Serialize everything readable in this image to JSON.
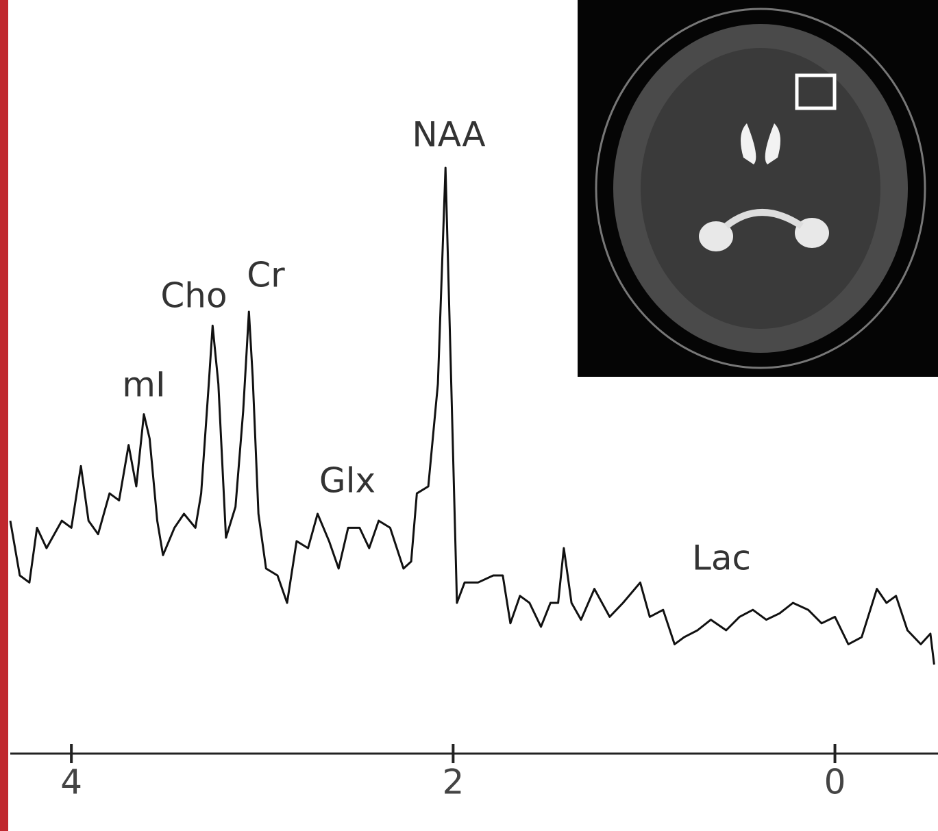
{
  "chart_data": {
    "type": "line",
    "x": [
      4.32,
      4.27,
      4.22,
      4.18,
      4.13,
      4.05,
      4.0,
      3.95,
      3.91,
      3.86,
      3.8,
      3.75,
      3.7,
      3.66,
      3.62,
      3.59,
      3.55,
      3.52,
      3.46,
      3.41,
      3.35,
      3.32,
      3.28,
      3.26,
      3.23,
      3.19,
      3.14,
      3.1,
      3.07,
      3.05,
      3.02,
      2.98,
      2.92,
      2.87,
      2.82,
      2.76,
      2.71,
      2.65,
      2.6,
      2.55,
      2.49,
      2.44,
      2.39,
      2.33,
      2.26,
      2.22,
      2.19,
      2.13,
      2.08,
      2.04,
      2.01,
      1.98,
      1.94,
      1.87,
      1.79,
      1.74,
      1.7,
      1.65,
      1.6,
      1.54,
      1.49,
      1.45,
      1.42,
      1.38,
      1.33,
      1.26,
      1.18,
      1.11,
      1.02,
      0.97,
      0.9,
      0.84,
      0.79,
      0.72,
      0.65,
      0.57,
      0.5,
      0.43,
      0.36,
      0.29,
      0.22,
      0.14,
      0.07,
      0.0,
      -0.07,
      -0.14,
      -0.22,
      -0.27,
      -0.32,
      -0.38,
      -0.45,
      -0.5,
      -0.52
    ],
    "values": [
      34.1,
      24.7,
      23.5,
      32.9,
      29.4,
      34.1,
      32.9,
      43.5,
      34.1,
      31.8,
      38.8,
      37.6,
      47.1,
      40.0,
      52.4,
      48.2,
      34.1,
      28.2,
      32.9,
      35.3,
      32.9,
      38.8,
      57.6,
      67.6,
      57.6,
      31.2,
      36.5,
      52.9,
      70.0,
      58.8,
      35.3,
      25.9,
      24.7,
      20.0,
      30.6,
      29.4,
      35.3,
      30.6,
      25.9,
      32.9,
      32.9,
      29.4,
      34.1,
      32.9,
      25.9,
      27.1,
      38.8,
      40.0,
      57.6,
      94.7,
      57.6,
      20.0,
      23.5,
      23.5,
      24.7,
      24.7,
      16.5,
      21.2,
      20.0,
      15.9,
      20.0,
      20.0,
      29.4,
      20.0,
      17.1,
      22.4,
      17.6,
      20.0,
      23.5,
      17.6,
      18.8,
      12.9,
      14.1,
      15.3,
      17.1,
      15.3,
      17.6,
      18.8,
      17.1,
      18.2,
      20.0,
      18.8,
      16.5,
      17.6,
      12.9,
      14.1,
      22.4,
      20.0,
      21.2,
      15.3,
      12.9,
      14.7,
      9.4
    ],
    "color": "#111111",
    "xlim": [
      4.32,
      -0.54
    ],
    "xticks": [
      4,
      2,
      0
    ],
    "ylim": [
      0,
      100
    ],
    "annotations": [
      "mI",
      "Cho",
      "Cr",
      "Glx",
      "NAA",
      "Lac"
    ]
  }
}
